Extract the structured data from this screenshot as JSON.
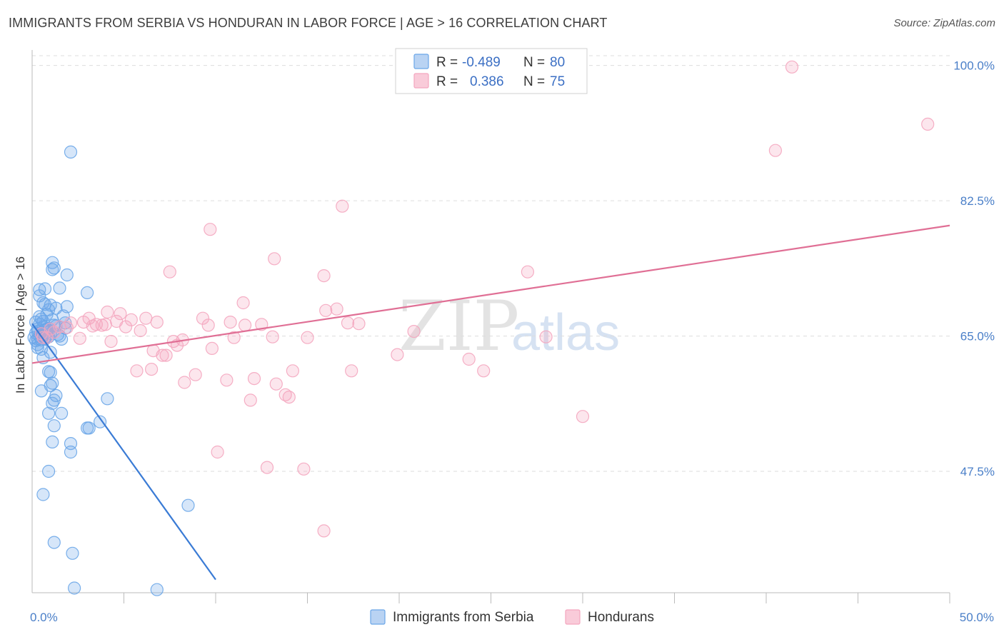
{
  "header": {
    "title": "IMMIGRANTS FROM SERBIA VS HONDURAN IN LABOR FORCE | AGE > 16 CORRELATION CHART",
    "source": "Source: ZipAtlas.com"
  },
  "watermark": {
    "zip": "ZIP",
    "atlas": "atlas"
  },
  "chart_data": {
    "type": "scatter",
    "title": "IMMIGRANTS FROM SERBIA VS HONDURAN IN LABOR FORCE | AGE > 16 CORRELATION CHART",
    "xlabel": "",
    "ylabel": "In Labor Force | Age > 16",
    "xlim": [
      0,
      50
    ],
    "ylim": [
      31.8,
      102
    ],
    "x_tick_labels": {
      "left": "0.0%",
      "right": "50.0%"
    },
    "y_ticks": [
      100.0,
      82.5,
      65.0,
      47.5
    ],
    "y_tick_labels": [
      "100.0%",
      "82.5%",
      "65.0%",
      "47.5%"
    ],
    "x_minor_ticks": [
      5,
      10,
      15,
      20,
      25,
      30,
      35,
      40,
      45,
      50
    ],
    "grid": true,
    "legend_position": "top-center",
    "stats": [
      {
        "r_label": "R =",
        "r_value": "-0.489",
        "n_label": "N =",
        "n_value": "80"
      },
      {
        "r_label": "R =",
        "r_value": "0.386",
        "n_label": "N =",
        "n_value": "75"
      }
    ],
    "series": [
      {
        "name": "Immigrants from Serbia",
        "color": "#6aa6e8",
        "line_color": "#3a7bd5",
        "trend": {
          "x0": 0.0,
          "y0": 66.6,
          "x1": 10.0,
          "y1": 33.5
        },
        "points": [
          [
            0.2,
            66.8
          ],
          [
            0.3,
            65.9
          ],
          [
            0.4,
            67.5
          ],
          [
            0.5,
            65.2
          ],
          [
            0.6,
            66.2
          ],
          [
            0.7,
            64.8
          ],
          [
            0.3,
            64.6
          ],
          [
            0.8,
            65.5
          ],
          [
            0.5,
            67.2
          ],
          [
            0.9,
            66.0
          ],
          [
            1.0,
            65.3
          ],
          [
            1.1,
            67.1
          ],
          [
            0.4,
            65.0
          ],
          [
            0.6,
            66.9
          ],
          [
            0.7,
            65.8
          ],
          [
            0.2,
            65.4
          ],
          [
            0.9,
            64.9
          ],
          [
            1.2,
            66.4
          ],
          [
            0.3,
            63.9
          ],
          [
            0.5,
            63.3
          ],
          [
            0.4,
            66.5
          ],
          [
            0.6,
            65.1
          ],
          [
            0.8,
            67.8
          ],
          [
            1.3,
            66.3
          ],
          [
            0.1,
            64.8
          ],
          [
            0.7,
            64.6
          ],
          [
            0.3,
            65.6
          ],
          [
            1.4,
            65.2
          ],
          [
            1.5,
            65.0
          ],
          [
            0.2,
            64.4
          ],
          [
            0.5,
            64.5
          ],
          [
            0.8,
            65.9
          ],
          [
            0.6,
            69.3
          ],
          [
            1.0,
            69.0
          ],
          [
            0.4,
            70.2
          ],
          [
            0.9,
            68.4
          ],
          [
            0.7,
            69.1
          ],
          [
            1.3,
            68.6
          ],
          [
            0.4,
            71.0
          ],
          [
            0.7,
            71.1
          ],
          [
            1.5,
            71.2
          ],
          [
            1.9,
            68.8
          ],
          [
            1.7,
            67.6
          ],
          [
            1.8,
            66.0
          ],
          [
            1.1,
            74.5
          ],
          [
            1.2,
            73.8
          ],
          [
            1.1,
            73.6
          ],
          [
            1.9,
            72.9
          ],
          [
            3.0,
            70.6
          ],
          [
            2.1,
            88.8
          ],
          [
            1.8,
            66.7
          ],
          [
            1.0,
            62.9
          ],
          [
            0.6,
            62.2
          ],
          [
            0.9,
            60.4
          ],
          [
            1.0,
            60.3
          ],
          [
            1.0,
            58.6
          ],
          [
            1.1,
            58.9
          ],
          [
            0.5,
            57.9
          ],
          [
            1.3,
            57.3
          ],
          [
            1.2,
            56.7
          ],
          [
            1.1,
            56.3
          ],
          [
            0.9,
            55.0
          ],
          [
            1.6,
            55.0
          ],
          [
            4.1,
            56.9
          ],
          [
            3.7,
            53.9
          ],
          [
            3.1,
            53.1
          ],
          [
            3.0,
            53.1
          ],
          [
            1.2,
            53.4
          ],
          [
            2.1,
            51.1
          ],
          [
            1.1,
            51.3
          ],
          [
            2.1,
            50.0
          ],
          [
            0.9,
            47.5
          ],
          [
            0.6,
            44.5
          ],
          [
            8.5,
            43.1
          ],
          [
            1.2,
            38.3
          ],
          [
            2.2,
            36.9
          ],
          [
            2.3,
            32.4
          ],
          [
            6.8,
            32.2
          ],
          [
            0.3,
            63.5
          ],
          [
            1.6,
            64.6
          ]
        ]
      },
      {
        "name": "Hondurans",
        "color": "#f4a6bf",
        "line_color": "#e06f95",
        "trend": {
          "x0": 0.0,
          "y0": 61.5,
          "x1": 50.0,
          "y1": 79.3
        },
        "points": [
          [
            0.5,
            65.3
          ],
          [
            0.6,
            64.8
          ],
          [
            0.8,
            64.8
          ],
          [
            1.0,
            65.9
          ],
          [
            1.2,
            65.5
          ],
          [
            1.5,
            66.2
          ],
          [
            1.9,
            66.1
          ],
          [
            2.1,
            66.7
          ],
          [
            2.6,
            64.7
          ],
          [
            2.8,
            66.8
          ],
          [
            3.1,
            67.3
          ],
          [
            3.3,
            66.3
          ],
          [
            3.5,
            66.5
          ],
          [
            3.8,
            66.4
          ],
          [
            4.0,
            66.5
          ],
          [
            4.1,
            68.1
          ],
          [
            4.3,
            64.3
          ],
          [
            4.6,
            66.9
          ],
          [
            4.8,
            67.9
          ],
          [
            5.1,
            66.2
          ],
          [
            5.4,
            67.1
          ],
          [
            5.7,
            60.5
          ],
          [
            5.9,
            65.7
          ],
          [
            6.2,
            67.3
          ],
          [
            6.5,
            60.7
          ],
          [
            6.6,
            63.1
          ],
          [
            6.8,
            66.8
          ],
          [
            7.1,
            62.5
          ],
          [
            7.3,
            62.5
          ],
          [
            7.5,
            73.3
          ],
          [
            7.7,
            64.3
          ],
          [
            7.9,
            63.8
          ],
          [
            8.2,
            64.5
          ],
          [
            8.3,
            59.0
          ],
          [
            8.9,
            60.0
          ],
          [
            9.3,
            67.3
          ],
          [
            9.6,
            66.4
          ],
          [
            9.7,
            78.8
          ],
          [
            10.1,
            50.0
          ],
          [
            10.6,
            59.3
          ],
          [
            10.8,
            66.8
          ],
          [
            11.0,
            64.8
          ],
          [
            11.5,
            69.3
          ],
          [
            11.6,
            66.4
          ],
          [
            11.9,
            56.7
          ],
          [
            12.1,
            59.5
          ],
          [
            12.5,
            66.5
          ],
          [
            12.8,
            48.0
          ],
          [
            13.1,
            64.9
          ],
          [
            13.2,
            75.0
          ],
          [
            13.3,
            58.8
          ],
          [
            13.8,
            57.4
          ],
          [
            14.0,
            57.1
          ],
          [
            14.2,
            60.5
          ],
          [
            14.8,
            47.8
          ],
          [
            15.0,
            64.8
          ],
          [
            15.9,
            39.8
          ],
          [
            15.9,
            72.8
          ],
          [
            16.0,
            68.3
          ],
          [
            16.6,
            68.5
          ],
          [
            16.9,
            81.8
          ],
          [
            17.2,
            66.7
          ],
          [
            17.4,
            60.5
          ],
          [
            17.8,
            66.6
          ],
          [
            19.9,
            62.6
          ],
          [
            20.8,
            65.6
          ],
          [
            23.8,
            62.0
          ],
          [
            24.6,
            60.5
          ],
          [
            27.0,
            73.3
          ],
          [
            28.0,
            64.9
          ],
          [
            30.0,
            54.6
          ],
          [
            40.5,
            89.0
          ],
          [
            41.4,
            99.8
          ],
          [
            48.8,
            92.4
          ],
          [
            9.8,
            63.4
          ]
        ]
      }
    ]
  }
}
